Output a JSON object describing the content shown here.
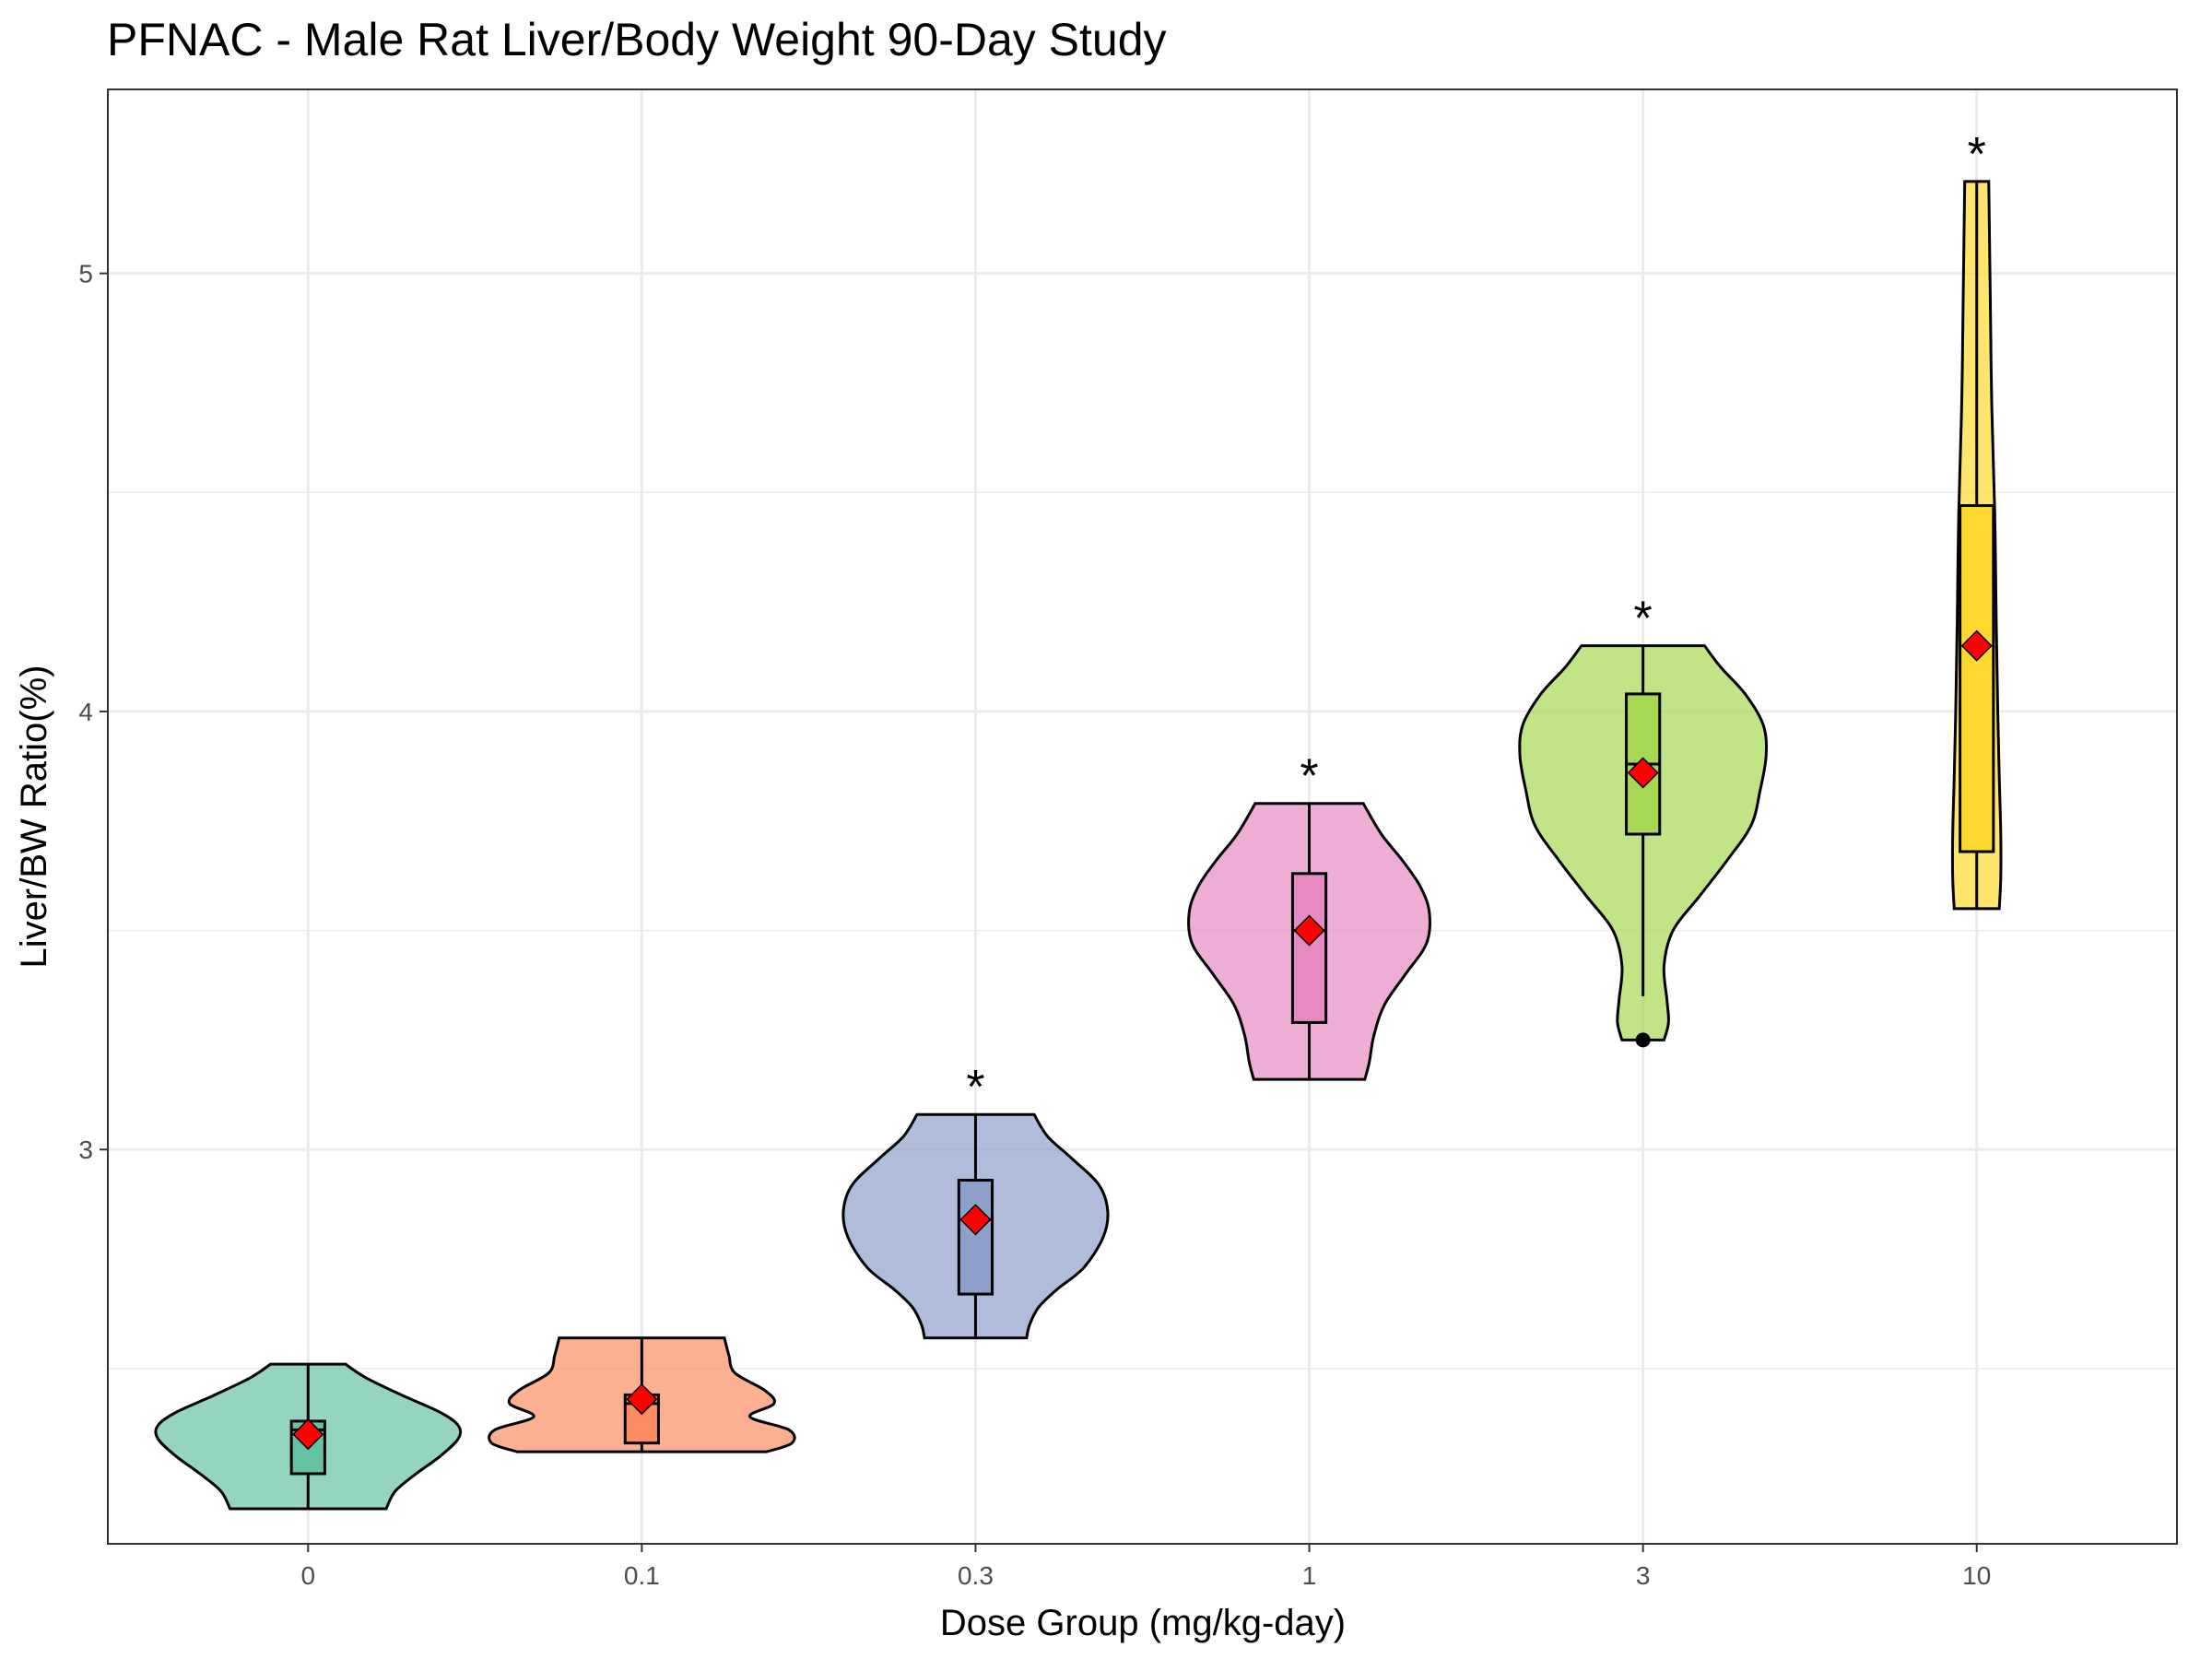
{
  "chart_data": {
    "type": "violin",
    "title": "PFNAC - Male Rat Liver/Body Weight 90-Day Study",
    "xlabel": "Dose Group (mg/kg-day)",
    "ylabel": "Liver/BW Ratio(%)",
    "categories": [
      "0",
      "0.1",
      "0.3",
      "1",
      "3",
      "10"
    ],
    "ylim": [
      2.1,
      5.42
    ],
    "yticks": [
      3,
      4,
      5
    ],
    "grid": true,
    "mean_marker_color": "#ff0000",
    "groups": [
      {
        "dose": "0",
        "color": "#66c2a5",
        "min": 2.18,
        "q1": 2.26,
        "median": 2.36,
        "q3": 2.38,
        "max": 2.51,
        "mean": 2.35,
        "outliers": [],
        "significant": false,
        "density": [
          [
            2.18,
            0.52
          ],
          [
            2.22,
            0.58
          ],
          [
            2.26,
            0.72
          ],
          [
            2.3,
            0.88
          ],
          [
            2.34,
            1.0
          ],
          [
            2.37,
            1.0
          ],
          [
            2.4,
            0.88
          ],
          [
            2.44,
            0.62
          ],
          [
            2.48,
            0.38
          ],
          [
            2.51,
            0.25
          ]
        ]
      },
      {
        "dose": "0.1",
        "color": "#fc8d62",
        "min": 2.31,
        "q1": 2.33,
        "median": 2.42,
        "q3": 2.44,
        "max": 2.57,
        "mean": 2.43,
        "outliers": [],
        "significant": false,
        "density": [
          [
            2.31,
            0.83
          ],
          [
            2.33,
            1.0
          ],
          [
            2.36,
            0.98
          ],
          [
            2.39,
            0.72
          ],
          [
            2.42,
            0.88
          ],
          [
            2.45,
            0.82
          ],
          [
            2.49,
            0.62
          ],
          [
            2.53,
            0.58
          ],
          [
            2.57,
            0.55
          ]
        ]
      },
      {
        "dose": "0.3",
        "color": "#8da0cb",
        "min": 2.57,
        "q1": 2.67,
        "median": 2.84,
        "q3": 2.93,
        "max": 3.08,
        "mean": 2.84,
        "outliers": [],
        "significant": true,
        "density": [
          [
            2.57,
            0.34
          ],
          [
            2.6,
            0.36
          ],
          [
            2.64,
            0.42
          ],
          [
            2.68,
            0.54
          ],
          [
            2.73,
            0.72
          ],
          [
            2.8,
            0.85
          ],
          [
            2.86,
            0.88
          ],
          [
            2.92,
            0.82
          ],
          [
            2.98,
            0.64
          ],
          [
            3.03,
            0.48
          ],
          [
            3.08,
            0.39
          ]
        ]
      },
      {
        "dose": "1",
        "color": "#e78ac3",
        "min": 3.16,
        "q1": 3.29,
        "median": 3.5,
        "q3": 3.63,
        "max": 3.79,
        "mean": 3.5,
        "outliers": [],
        "significant": true,
        "density": [
          [
            3.16,
            0.37
          ],
          [
            3.2,
            0.4
          ],
          [
            3.26,
            0.43
          ],
          [
            3.33,
            0.5
          ],
          [
            3.4,
            0.64
          ],
          [
            3.47,
            0.78
          ],
          [
            3.54,
            0.8
          ],
          [
            3.6,
            0.74
          ],
          [
            3.66,
            0.62
          ],
          [
            3.72,
            0.48
          ],
          [
            3.79,
            0.36
          ]
        ]
      },
      {
        "dose": "3",
        "color": "#a6d854",
        "min": 3.25,
        "q1": 3.72,
        "median": 3.88,
        "q3": 4.04,
        "max": 4.15,
        "mean": 3.86,
        "whisker_low": 3.35,
        "outliers": [
          3.25
        ],
        "significant": true,
        "density": [
          [
            3.25,
            0.14
          ],
          [
            3.29,
            0.17
          ],
          [
            3.34,
            0.16
          ],
          [
            3.42,
            0.14
          ],
          [
            3.5,
            0.2
          ],
          [
            3.58,
            0.38
          ],
          [
            3.66,
            0.56
          ],
          [
            3.74,
            0.72
          ],
          [
            3.82,
            0.78
          ],
          [
            3.9,
            0.82
          ],
          [
            3.97,
            0.8
          ],
          [
            4.04,
            0.68
          ],
          [
            4.1,
            0.52
          ],
          [
            4.15,
            0.41
          ]
        ]
      },
      {
        "dose": "10",
        "color": "#ffd92f",
        "min": 3.55,
        "q1": 3.68,
        "median": 3.68,
        "q3": 4.47,
        "max": 5.21,
        "mean": 4.15,
        "outliers": [],
        "significant": true,
        "density": [
          [
            3.55,
            0.15
          ],
          [
            3.62,
            0.16
          ],
          [
            3.72,
            0.16
          ],
          [
            3.85,
            0.15
          ],
          [
            4.0,
            0.14
          ],
          [
            4.2,
            0.13
          ],
          [
            4.45,
            0.12
          ],
          [
            4.7,
            0.1
          ],
          [
            4.95,
            0.09
          ],
          [
            5.21,
            0.08
          ]
        ]
      }
    ]
  }
}
